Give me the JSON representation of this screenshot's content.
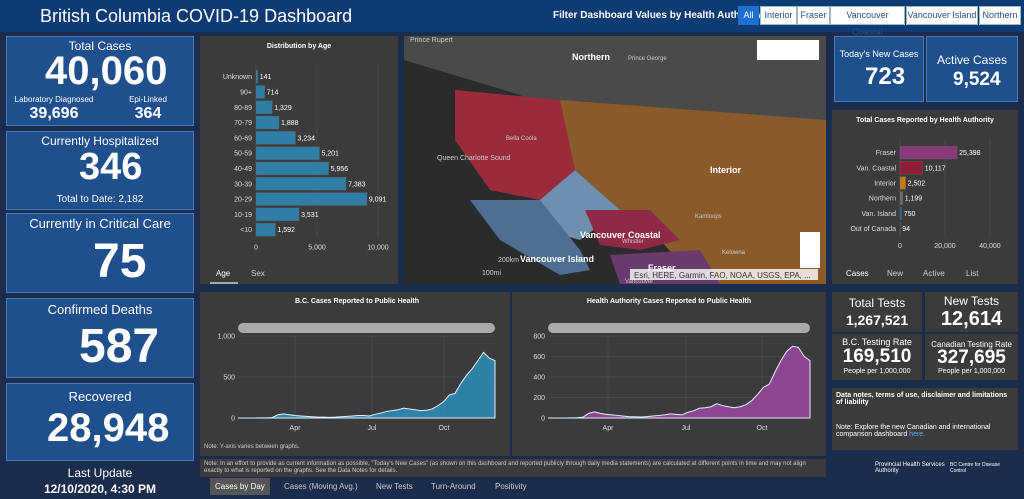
{
  "header": {
    "title": "British Columbia COVID-19 Dashboard",
    "filter_label": "Filter Dashboard Values by Health Authority:",
    "filters": [
      "All",
      "Interior",
      "Fraser",
      "Vancouver Coastal",
      "Vancouver Island",
      "Northern"
    ]
  },
  "total_cases": {
    "label": "Total Cases",
    "value": "40,060",
    "lab_label": "Laboratory Diagnosed",
    "lab_value": "39,696",
    "epi_label": "Epi-Linked",
    "epi_value": "364"
  },
  "hospitalized": {
    "label": "Currently Hospitalized",
    "value": "346",
    "total": "Total to Date: 2,182"
  },
  "critical": {
    "label": "Currently in Critical Care",
    "value": "75"
  },
  "deaths": {
    "label": "Confirmed Deaths",
    "value": "587"
  },
  "recovered": {
    "label": "Recovered",
    "value": "28,948"
  },
  "last_update": {
    "label": "Last Update",
    "value": "12/10/2020, 4:30 PM"
  },
  "age_chart": {
    "type": "bar",
    "title": "Distribution by Age",
    "categories": [
      "Unknown",
      "90+",
      "80-89",
      "70-79",
      "60-69",
      "50-59",
      "40-49",
      "30-39",
      "20-29",
      "10-19",
      "<10"
    ],
    "values": [
      141,
      714,
      1329,
      1888,
      3234,
      5201,
      5956,
      7383,
      9091,
      3531,
      1592
    ],
    "value_labels": [
      "141",
      "714",
      "1,329",
      "1,888",
      "3,234",
      "5,201",
      "5,956",
      "7,383",
      "9,091",
      "3,531",
      "1,592"
    ],
    "color": "#2e7ea6",
    "xlim": [
      0,
      10000
    ],
    "xticks": [
      0,
      {
        "value": 5000,
        "label": "5,000"
      },
      {
        "value": 10000,
        "label": "10,000"
      }
    ],
    "tabs": [
      "Age",
      "Sex"
    ]
  },
  "map": {
    "labels": [
      "Prince Rupert",
      "Northern",
      "Prince George",
      "Bella Coola",
      "Queen Charlotte Sound",
      "Interior",
      "Kamloops",
      "Vancouver Coastal",
      "Whistler",
      "Vancouver Island",
      "Kelowna",
      "Fraser",
      "Vancouver"
    ],
    "scale": [
      "200km",
      "100mi"
    ],
    "attribution": "Esri, HERE, Garmin, FAO, NOAA, USGS, EPA, ..."
  },
  "new_cases": {
    "label": "Today's New Cases",
    "value": "723"
  },
  "active_cases": {
    "label": "Active Cases",
    "value": "9,524"
  },
  "ha_chart": {
    "type": "bar",
    "title": "Total Cases Reported by Health Authority",
    "categories": [
      "Fraser",
      "Van. Coastal",
      "Interior",
      "Northern",
      "Van. Island",
      "Out of Canada"
    ],
    "values": [
      25398,
      10117,
      2502,
      1199,
      750,
      94
    ],
    "value_labels": [
      "25,398",
      "10,117",
      "2,502",
      "1,199",
      "750",
      "94"
    ],
    "colors": [
      "#8a3a7c",
      "#8e1d3c",
      "#c47a1c",
      "#6b6b6b",
      "#2c5f8f",
      "#888888"
    ],
    "xlim": [
      0,
      40000
    ],
    "xticks": [
      0,
      {
        "value": 20000,
        "label": "20,000"
      },
      {
        "value": 40000,
        "label": "40,000"
      }
    ],
    "tabs": [
      "Cases",
      "New",
      "Active",
      "List"
    ]
  },
  "tests": {
    "total_label": "Total Tests",
    "total_value": "1,267,521",
    "new_label": "New Tests",
    "new_value": "12,614",
    "bc_label": "B.C. Testing Rate",
    "bc_value": "169,510",
    "bc_unit": "People per 1,000,000",
    "can_label": "Canadian Testing Rate",
    "can_value": "327,695",
    "can_unit": "People per 1,000,000"
  },
  "notes": {
    "title": "Data notes, terms of use, disclaimer and limitations of liability",
    "text": "Note: Explore the new Canadian and international comparison dashboard",
    "link": "here."
  },
  "logos": [
    "Provincial Health Services Authority",
    "BC Centre for Disease Control"
  ],
  "bc_chart": {
    "type": "area",
    "title": "B.C. Cases Reported to Public Health",
    "color": "#2e8fb8",
    "x_labels": [
      "Apr",
      "Jul",
      "Oct"
    ],
    "values": [
      0,
      0,
      0,
      0,
      1,
      2,
      5,
      40,
      50,
      40,
      30,
      25,
      20,
      15,
      10,
      10,
      8,
      10,
      15,
      20,
      25,
      30,
      30,
      25,
      45,
      60,
      80,
      90,
      100,
      120,
      110,
      100,
      90,
      95,
      110,
      150,
      200,
      280,
      300,
      420,
      520,
      600,
      700,
      800,
      730,
      700
    ],
    "ylim": [
      0,
      1000
    ],
    "yticks": [
      0,
      500,
      {
        "value": 1000,
        "label": "1,000"
      }
    ],
    "note": "Note: Y-axis varies between graphs."
  },
  "ha_time_chart": {
    "type": "area",
    "title": "Health Authority Cases Reported to Public Health",
    "color": "#9b4aa0",
    "x_labels": [
      "Apr",
      "Jul",
      "Oct"
    ],
    "values": [
      0,
      0,
      0,
      0,
      1,
      3,
      8,
      45,
      60,
      45,
      35,
      30,
      25,
      18,
      12,
      12,
      10,
      14,
      20,
      25,
      30,
      40,
      35,
      30,
      55,
      70,
      95,
      100,
      110,
      140,
      120,
      110,
      100,
      110,
      130,
      170,
      230,
      300,
      330,
      450,
      560,
      650,
      700,
      690,
      600,
      560
    ],
    "ylim": [
      0,
      800
    ],
    "yticks": [
      0,
      200,
      400,
      600,
      800
    ]
  },
  "footer_note": "Note: In an effort to provide as current information as possible, \"Today's New Cases\" (as shown on this dashboard and reported publicly through daily media statements) are calculated at different points in time and may not align exactly to what is reported on the graphs. See the Data Notes for details.",
  "bottom_tabs": [
    "Cases by Day",
    "Cases (Moving Avg.)",
    "New Tests",
    "Turn-Around",
    "Positivity"
  ]
}
